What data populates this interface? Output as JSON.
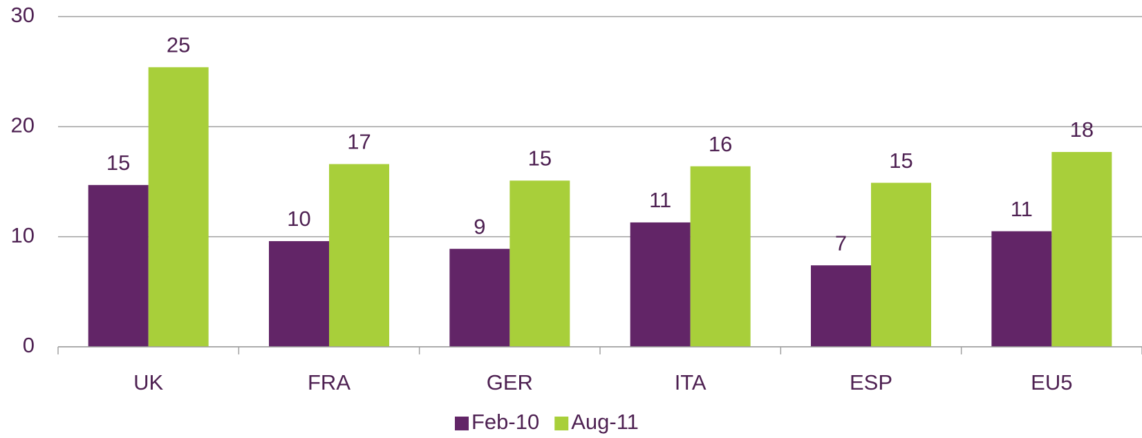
{
  "chart_data": {
    "type": "bar",
    "categories": [
      "UK",
      "FRA",
      "GER",
      "ITA",
      "ESP",
      "EU5"
    ],
    "series": [
      {
        "name": "Feb-10",
        "color": "#622567",
        "values": [
          14.7,
          9.6,
          8.9,
          11.3,
          7.4,
          10.5
        ],
        "value_labels": [
          "15",
          "10",
          "9",
          "11",
          "7",
          "11"
        ]
      },
      {
        "name": "Aug-11",
        "color": "#a8cf3a",
        "values": [
          25.4,
          16.6,
          15.1,
          16.4,
          14.9,
          17.7
        ],
        "value_labels": [
          "25",
          "17",
          "15",
          "16",
          "15",
          "18"
        ]
      }
    ],
    "ylim": [
      0,
      30
    ],
    "yticks": [
      0,
      10,
      20,
      30
    ],
    "grid": true,
    "legend": "bottom"
  }
}
